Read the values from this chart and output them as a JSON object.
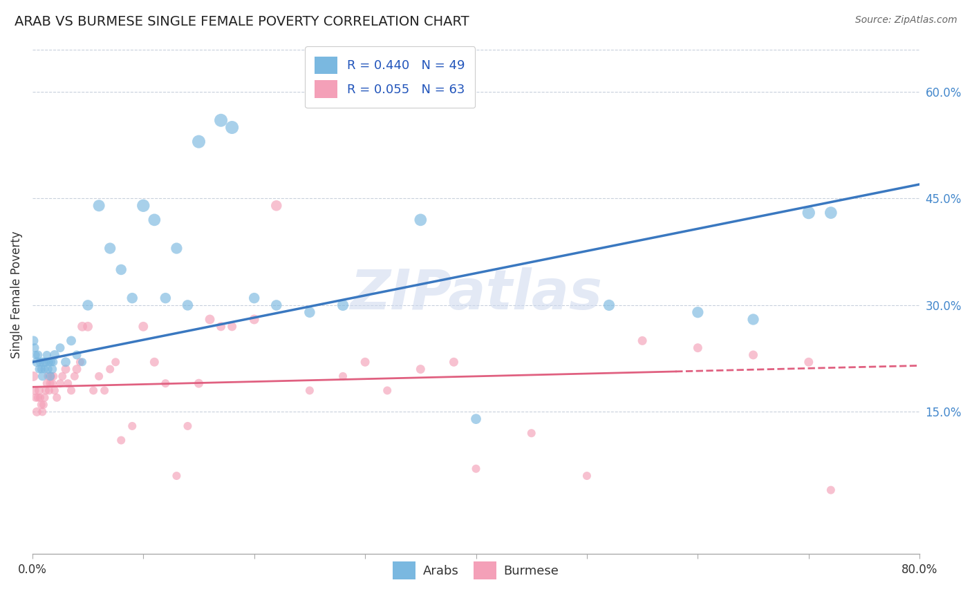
{
  "title": "ARAB VS BURMESE SINGLE FEMALE POVERTY CORRELATION CHART",
  "source": "Source: ZipAtlas.com",
  "ylabel": "Single Female Poverty",
  "right_yticks": [
    "15.0%",
    "30.0%",
    "45.0%",
    "60.0%"
  ],
  "right_ytick_vals": [
    0.15,
    0.3,
    0.45,
    0.6
  ],
  "arab_R": 0.44,
  "arab_N": 49,
  "burmese_R": 0.055,
  "burmese_N": 63,
  "arab_color": "#7ab8e0",
  "burmese_color": "#f4a0b8",
  "arab_line_color": "#3a78c0",
  "burmese_line_color": "#e06080",
  "legend_text_color": "#2255bb",
  "watermark": "ZIPatlas",
  "xlim": [
    0.0,
    0.8
  ],
  "ylim": [
    -0.05,
    0.68
  ],
  "arab_line_x0": 0.0,
  "arab_line_y0": 0.22,
  "arab_line_x1": 0.8,
  "arab_line_y1": 0.47,
  "burmese_line_x0": 0.0,
  "burmese_line_y0": 0.185,
  "burmese_line_x1": 0.8,
  "burmese_line_y1": 0.215,
  "burmese_line_dash_start": 0.58,
  "arab_scatter_x": [
    0.001,
    0.002,
    0.003,
    0.004,
    0.005,
    0.006,
    0.007,
    0.008,
    0.009,
    0.01,
    0.011,
    0.012,
    0.013,
    0.014,
    0.015,
    0.016,
    0.017,
    0.018,
    0.019,
    0.02,
    0.025,
    0.03,
    0.035,
    0.04,
    0.045,
    0.05,
    0.06,
    0.07,
    0.08,
    0.09,
    0.1,
    0.11,
    0.12,
    0.13,
    0.14,
    0.15,
    0.17,
    0.18,
    0.2,
    0.22,
    0.25,
    0.28,
    0.35,
    0.4,
    0.52,
    0.6,
    0.65,
    0.7,
    0.72
  ],
  "arab_scatter_y": [
    0.25,
    0.24,
    0.23,
    0.22,
    0.23,
    0.21,
    0.22,
    0.21,
    0.2,
    0.22,
    0.21,
    0.22,
    0.23,
    0.21,
    0.22,
    0.2,
    0.22,
    0.21,
    0.22,
    0.23,
    0.24,
    0.22,
    0.25,
    0.23,
    0.22,
    0.3,
    0.44,
    0.38,
    0.35,
    0.31,
    0.44,
    0.42,
    0.31,
    0.38,
    0.3,
    0.53,
    0.56,
    0.55,
    0.31,
    0.3,
    0.29,
    0.3,
    0.42,
    0.14,
    0.3,
    0.29,
    0.28,
    0.43,
    0.43
  ],
  "arab_scatter_size": [
    40,
    35,
    30,
    40,
    35,
    30,
    35,
    30,
    35,
    40,
    30,
    35,
    30,
    35,
    30,
    35,
    30,
    35,
    30,
    40,
    35,
    40,
    40,
    35,
    30,
    50,
    60,
    55,
    50,
    50,
    70,
    65,
    50,
    55,
    50,
    75,
    75,
    75,
    50,
    50,
    50,
    55,
    65,
    45,
    55,
    55,
    55,
    70,
    65
  ],
  "burmese_scatter_x": [
    0.001,
    0.002,
    0.003,
    0.004,
    0.005,
    0.006,
    0.007,
    0.008,
    0.009,
    0.01,
    0.011,
    0.012,
    0.013,
    0.014,
    0.015,
    0.016,
    0.017,
    0.018,
    0.019,
    0.02,
    0.022,
    0.025,
    0.027,
    0.03,
    0.032,
    0.035,
    0.038,
    0.04,
    0.043,
    0.045,
    0.05,
    0.055,
    0.06,
    0.065,
    0.07,
    0.075,
    0.08,
    0.09,
    0.1,
    0.11,
    0.12,
    0.13,
    0.14,
    0.15,
    0.16,
    0.17,
    0.18,
    0.2,
    0.22,
    0.25,
    0.28,
    0.3,
    0.32,
    0.35,
    0.38,
    0.4,
    0.45,
    0.5,
    0.55,
    0.6,
    0.65,
    0.7,
    0.72
  ],
  "burmese_scatter_y": [
    0.2,
    0.18,
    0.17,
    0.15,
    0.17,
    0.18,
    0.17,
    0.16,
    0.15,
    0.16,
    0.17,
    0.18,
    0.19,
    0.2,
    0.18,
    0.19,
    0.2,
    0.19,
    0.2,
    0.18,
    0.17,
    0.19,
    0.2,
    0.21,
    0.19,
    0.18,
    0.2,
    0.21,
    0.22,
    0.27,
    0.27,
    0.18,
    0.2,
    0.18,
    0.21,
    0.22,
    0.11,
    0.13,
    0.27,
    0.22,
    0.19,
    0.06,
    0.13,
    0.19,
    0.28,
    0.27,
    0.27,
    0.28,
    0.44,
    0.18,
    0.2,
    0.22,
    0.18,
    0.21,
    0.22,
    0.07,
    0.12,
    0.06,
    0.25,
    0.24,
    0.23,
    0.22,
    0.04
  ],
  "burmese_scatter_size": [
    40,
    35,
    30,
    35,
    30,
    35,
    30,
    30,
    30,
    30,
    30,
    30,
    30,
    30,
    30,
    30,
    30,
    30,
    30,
    30,
    30,
    30,
    30,
    35,
    30,
    30,
    30,
    35,
    30,
    40,
    40,
    30,
    30,
    30,
    30,
    30,
    30,
    30,
    40,
    35,
    30,
    30,
    30,
    35,
    40,
    35,
    35,
    40,
    50,
    30,
    30,
    35,
    30,
    35,
    35,
    30,
    30,
    30,
    35,
    35,
    35,
    35,
    30
  ]
}
